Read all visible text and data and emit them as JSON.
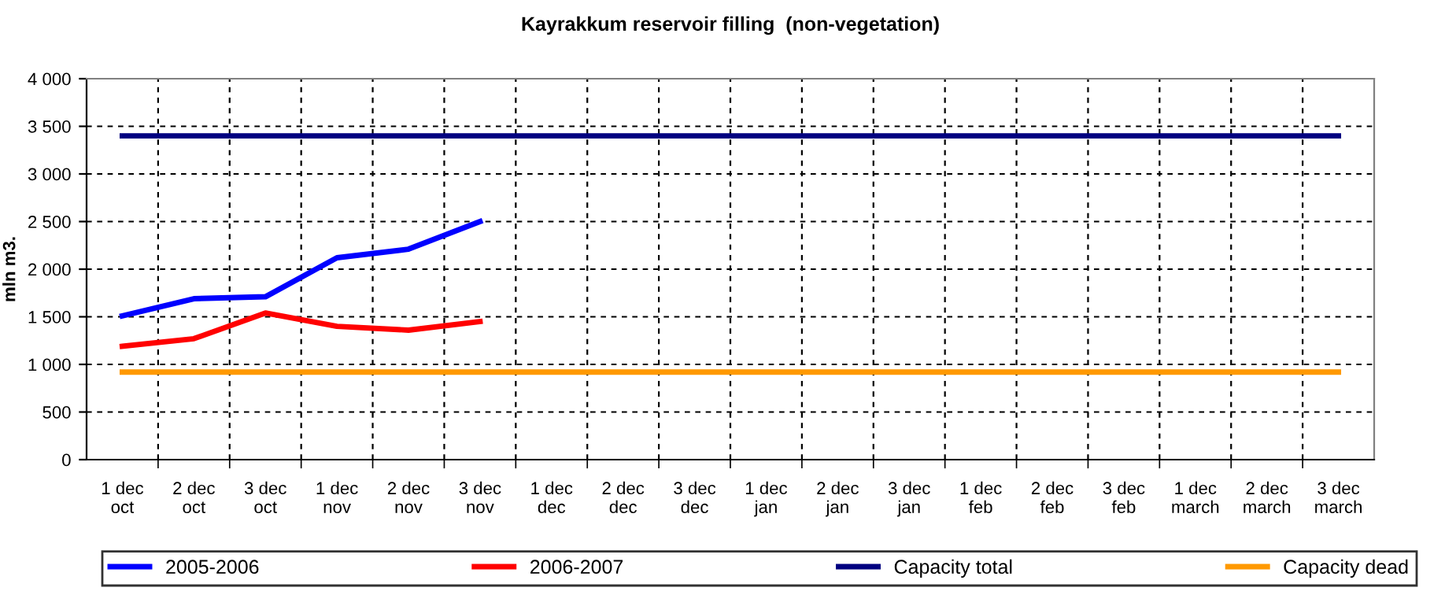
{
  "chart_data": {
    "type": "line",
    "title": "Kayrakkum reservoir filling  (non-vegetation)",
    "ylabel": "mln m3.",
    "categories": [
      "1 dec\noct",
      "2 dec\noct",
      "3 dec\noct",
      "1 dec\nnov",
      "2 dec\nnov",
      "3 dec\nnov",
      "1 dec\ndec",
      "2 dec\ndec",
      "3 dec\ndec",
      "1 dec\njan",
      "2 dec\njan",
      "3 dec\njan",
      "1 dec\nfeb",
      "2 dec\nfeb",
      "3 dec\nfeb",
      "1 dec\nmarch",
      "2 dec\nmarch",
      "3 dec\nmarch"
    ],
    "series": [
      {
        "name": "2005-2006",
        "color": "#0000ff",
        "values": [
          1510,
          1690,
          1710,
          2120,
          2210,
          2500,
          null,
          null,
          null,
          null,
          null,
          null,
          null,
          null,
          null,
          null,
          null,
          null
        ]
      },
      {
        "name": "2006-2007",
        "color": "#ff0000",
        "values": [
          1190,
          1270,
          1540,
          1400,
          1360,
          1450,
          null,
          null,
          null,
          null,
          null,
          null,
          null,
          null,
          null,
          null,
          null,
          null
        ]
      },
      {
        "name": "Capacity total",
        "color": "#000080",
        "values": [
          3400,
          3400,
          3400,
          3400,
          3400,
          3400,
          3400,
          3400,
          3400,
          3400,
          3400,
          3400,
          3400,
          3400,
          3400,
          3400,
          3400,
          3400
        ]
      },
      {
        "name": "Capacity dead",
        "color": "#ff9900",
        "values": [
          920,
          920,
          920,
          920,
          920,
          920,
          920,
          920,
          920,
          920,
          920,
          920,
          920,
          920,
          920,
          920,
          920,
          920
        ]
      }
    ],
    "ylim": [
      0,
      4000
    ],
    "yticks": [
      {
        "value": 0,
        "label": "0"
      },
      {
        "value": 500,
        "label": "500"
      },
      {
        "value": 1000,
        "label": "1 000"
      },
      {
        "value": 1500,
        "label": "1 500"
      },
      {
        "value": 2000,
        "label": "2 000"
      },
      {
        "value": 2500,
        "label": "2 500"
      },
      {
        "value": 3000,
        "label": "3 000"
      },
      {
        "value": 3500,
        "label": "3 500"
      },
      {
        "value": 4000,
        "label": "4 000"
      }
    ],
    "grid": true,
    "legend": "bottom",
    "marker": "none",
    "line_style": "solid"
  }
}
